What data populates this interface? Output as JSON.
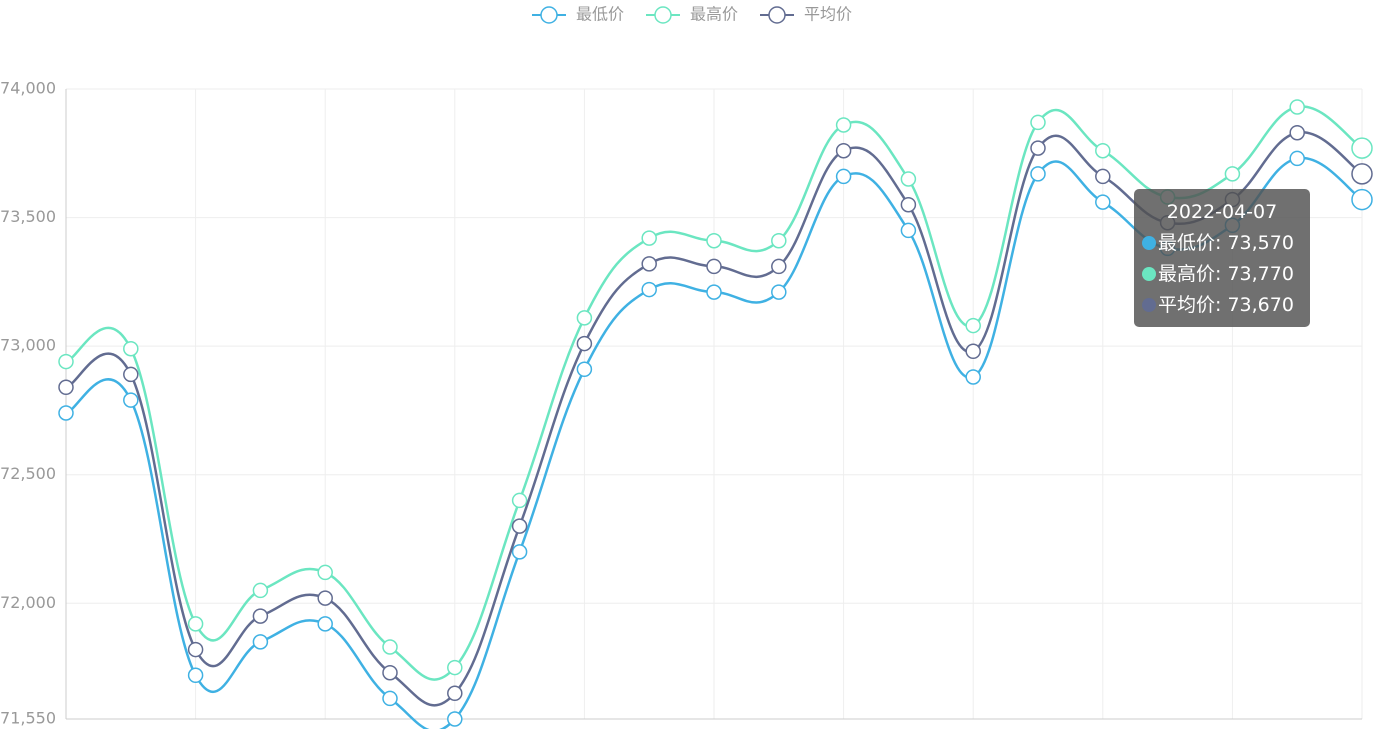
{
  "chart_data": {
    "type": "line",
    "categories": [
      null,
      null,
      null,
      null,
      null,
      null,
      null,
      null,
      null,
      null,
      null,
      null,
      null,
      null,
      null,
      null,
      null,
      null,
      null,
      null,
      "2022-04-07"
    ],
    "series": [
      {
        "name": "最低价",
        "color": "#3fb1e3",
        "values": [
          72740,
          72790,
          71720,
          71850,
          71920,
          71630,
          71550,
          72200,
          72910,
          73220,
          73210,
          73210,
          73660,
          73450,
          72880,
          73670,
          73560,
          73380,
          73470,
          73730,
          73570
        ]
      },
      {
        "name": "最高价",
        "color": "#6be6c1",
        "values": [
          72940,
          72990,
          71920,
          72050,
          72120,
          71830,
          71750,
          72400,
          73110,
          73420,
          73410,
          73410,
          73860,
          73650,
          73080,
          73870,
          73760,
          73580,
          73670,
          73930,
          73770
        ]
      },
      {
        "name": "平均价",
        "color": "#626c91",
        "values": [
          72840,
          72890,
          71820,
          71950,
          72020,
          71730,
          71650,
          72300,
          73010,
          73320,
          73310,
          73310,
          73760,
          73550,
          72980,
          73770,
          73660,
          73480,
          73570,
          73830,
          73670
        ]
      }
    ],
    "ylim": [
      71550,
      74000
    ],
    "yticks": [
      {
        "value": 71550,
        "label": "71,550"
      },
      {
        "value": 72000,
        "label": "72,000"
      },
      {
        "value": 72500,
        "label": "72,500"
      },
      {
        "value": 73000,
        "label": "73,000"
      },
      {
        "value": 73500,
        "label": "73,500"
      },
      {
        "value": 74000,
        "label": "74,000"
      }
    ],
    "grid": true,
    "legend": "top",
    "smooth": true,
    "tooltip": {
      "rows": [
        "最低价: 73,570",
        "最高价: 73,770",
        "平均价: 73,670"
      ]
    }
  }
}
